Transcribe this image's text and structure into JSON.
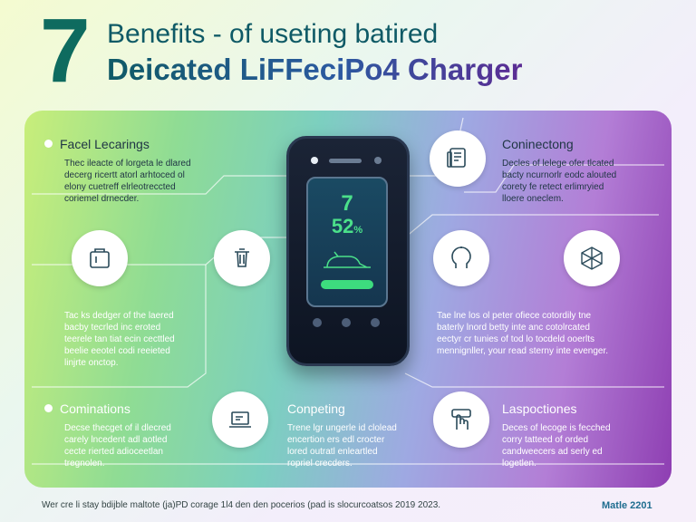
{
  "header": {
    "big_number": "7",
    "title_line1": "Benefits - of useting batired",
    "title_line2": "Deicated LiFFeciPo4 Charger"
  },
  "phone": {
    "number": "7",
    "percent": "52",
    "percent_sign": "%"
  },
  "sections": {
    "top_left": {
      "heading": "Facel Lecarings",
      "text": "Thec ileacte of lorgeta le dlared\ndecerg ricertt atorl arhtoced ol\nelony cuetreff elrleotreccted\ncoriemel drnecder."
    },
    "top_right": {
      "heading": "Coninectong",
      "text": "Decles of lelege ofer tlcated\nbacty ncurnorlr eodc alouted\ncorety fe retect erlimryied\nlloere oneclem."
    },
    "mid_left": {
      "text": "Tac ks dedger of the laered\nbacby tecrled inc eroted\nteerele tan tiat ecin cecttled\nbeelie eeotel codi reeieted\nlinjrte onctop."
    },
    "mid_right": {
      "text": "Tae lne los ol peter ofiece cotordily tne\nbaterly lnord betty inte anc cotolrcated\neectyr cr tunies of tod lo tocdeld ooerlts\nmennignller, your read sterny inte evenger."
    },
    "bottom_left": {
      "heading": "Cominations",
      "text": "Decse thecget of il dlecred\ncarely lncedent adl aotled\ncecte rierted adioceetlan\ntregnolen."
    },
    "bottom_center": {
      "heading": "Conpeting",
      "text": "Trene lgr ungerle id clolead\nencertion ers edl crocter\nlored outratl enleartled\nropriel crecders."
    },
    "bottom_right": {
      "heading": "Laspoctiones",
      "text": "Deces of lecoge is fecched\ncorry tatteed of orded\ncandweecers ad serly ed\nlogetlen."
    }
  },
  "footer": {
    "left": "Wer cre li stay bdijble maltote (ja)PD corage 1l4 den den pocerios (pad is slocurcoatsos 2019 2023.",
    "right": "Matle 2201"
  },
  "icons": [
    "trash-can-icon",
    "jar-icon",
    "document-stack-icon",
    "head-idea-icon",
    "network-hexagon-icon",
    "laptop-icon",
    "hand-touch-icon",
    "battery-icon"
  ],
  "colors": {
    "title_teal": "#0f5a66",
    "title_purple": "#5b2c94",
    "big_number": "#0e6b5f",
    "screen_green": "#4be08a"
  }
}
